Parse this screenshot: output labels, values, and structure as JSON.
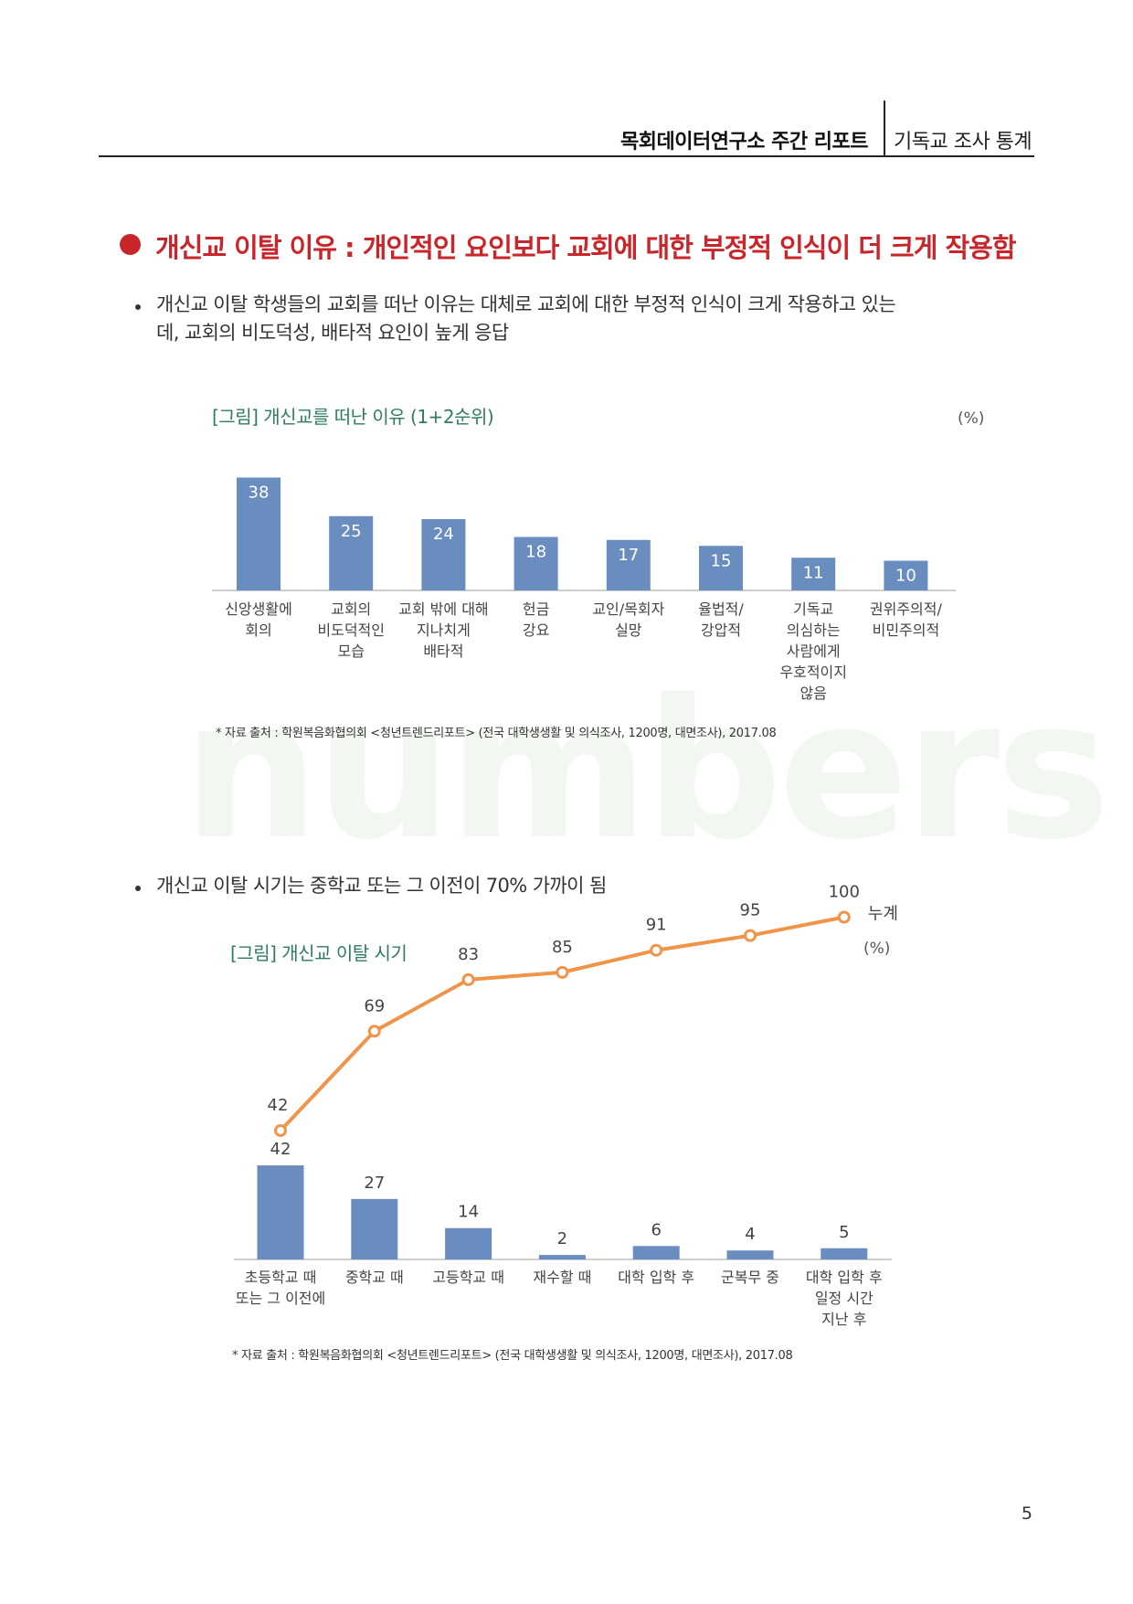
{
  "header": {
    "brand": "목회데이터연구소 주간 리포트",
    "section": "기독교 조사 통계"
  },
  "watermark": "numbers",
  "section_title": "개신교 이탈 이유 : 개인적인 요인보다 교회에 대한 부정적 인식이 더 크게 작용함",
  "bullet1": {
    "line1": "개신교 이탈 학생들의 교회를 떠난 이유는 대체로 교회에 대한 부정적 인식이 크게 작용하고 있는",
    "line2": "데, 교회의 비도덕성, 배타적 요인이 높게 응답"
  },
  "bullet2": "개신교 이탈 시기는 중학교 또는 그 이전이 70% 가까이 됨",
  "figure1": {
    "title": "[그림] 개신교를 떠난 이유 (1+2순위)",
    "unit": "(%)",
    "source": "* 자료 출처 : 학원복음화협의회 <청년트렌드리포트> (전국 대학생생활 및 의식조사, 1200명, 대면조사),  2017.08"
  },
  "figure2": {
    "title": "[그림] 개신교 이탈 시기",
    "unit": "(%)",
    "source": "* 자료 출처 : 학원복음화협의회 <청년트렌드리포트> (전국 대학생생활 및 의식조사, 1200명, 대면조사),  2017.08"
  },
  "page_number": "5",
  "chart_data": [
    {
      "type": "bar",
      "title": "[그림] 개신교를 떠난 이유 (1+2순위)",
      "categories": [
        [
          "신앙생활에",
          "회의"
        ],
        [
          "교회의",
          "비도덕적인",
          "모습"
        ],
        [
          "교회 밖에 대해",
          "지나치게",
          "배타적"
        ],
        [
          "헌금",
          "강요"
        ],
        [
          "교인/목회자",
          "실망"
        ],
        [
          "율법적/",
          "강압적"
        ],
        [
          "기독교",
          "의심하는",
          "사람에게",
          "우호적이지",
          "않음"
        ],
        [
          "권위주의적/",
          "비민주의적"
        ]
      ],
      "values": [
        38,
        25,
        24,
        18,
        17,
        15,
        11,
        10
      ],
      "ylim": [
        0,
        40
      ],
      "unit": "(%)",
      "bar_color": "#6a8dbf",
      "label_color": "#ffffff"
    },
    {
      "type": "bar+line",
      "title": "[그림] 개신교 이탈 시기",
      "categories": [
        [
          "초등학교 때",
          "또는 그 이전에"
        ],
        [
          "중학교 때"
        ],
        [
          "고등학교 때"
        ],
        [
          "재수할 때"
        ],
        [
          "대학 입학 후"
        ],
        [
          "군복무 중"
        ],
        [
          "대학 입학 후",
          "일정 시간",
          "지난 후"
        ]
      ],
      "series": [
        {
          "type": "bar",
          "values": [
            42,
            27,
            14,
            2,
            6,
            4,
            5
          ],
          "color": "#6a8dbf"
        },
        {
          "type": "line",
          "name": "누계",
          "values": [
            42,
            69,
            83,
            85,
            91,
            95,
            100
          ],
          "color": "#f0944a"
        }
      ],
      "unit": "(%)"
    }
  ]
}
